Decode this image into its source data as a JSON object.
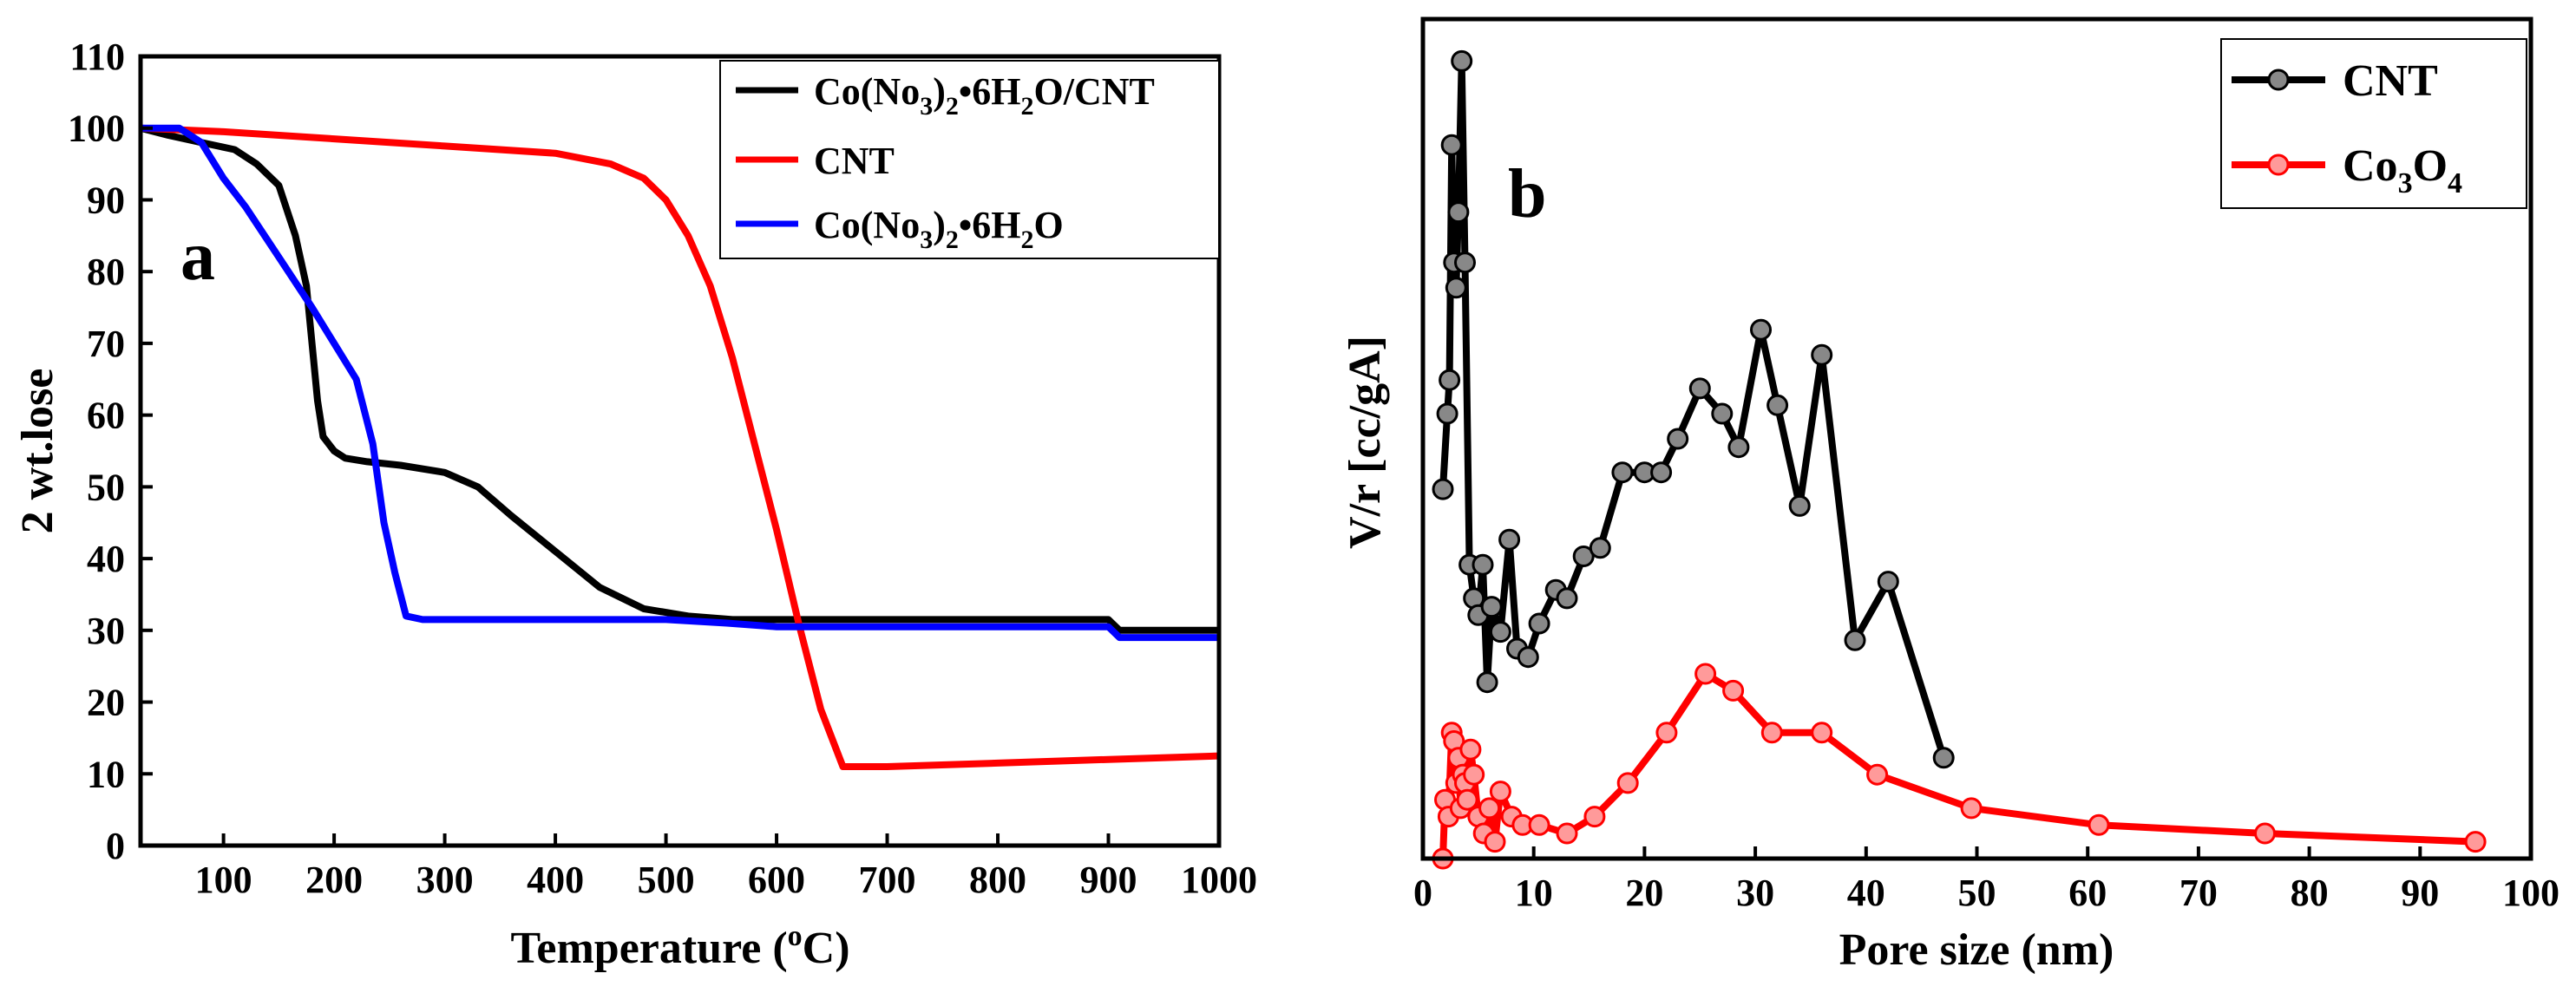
{
  "chart_data": [
    {
      "type": "line",
      "panel_label": "a",
      "xlabel_text": "Temperature (",
      "xlabel_sup": "o",
      "xlabel_unit": "C)",
      "ylabel": "2 wt.lose",
      "xlim": [
        25,
        1000
      ],
      "ylim": [
        0,
        110
      ],
      "xticks": [
        100,
        200,
        300,
        400,
        500,
        600,
        700,
        800,
        900,
        1000
      ],
      "yticks": [
        0,
        10,
        20,
        30,
        40,
        50,
        60,
        70,
        80,
        90,
        100,
        110
      ],
      "legend": [
        {
          "text": "Co(No",
          "sub1": "3",
          "mid": ")",
          "sub2": "2",
          "tail": "•6H",
          "sub3": "2",
          "end": "O/CNT"
        },
        {
          "text": "CNT"
        },
        {
          "text": "Co(No",
          "sub1": "3",
          "mid": ")",
          "sub2": "2",
          "tail": "•6H",
          "sub3": "2",
          "end": "O"
        }
      ],
      "series": [
        {
          "name": "Co(No3)2•6H2O/CNT",
          "color": "#000000",
          "x": [
            25,
            50,
            80,
            110,
            130,
            150,
            165,
            175,
            180,
            185,
            190,
            200,
            210,
            230,
            260,
            300,
            330,
            360,
            400,
            440,
            480,
            520,
            560,
            600,
            700,
            800,
            900,
            910,
            1000
          ],
          "y": [
            100,
            99,
            98,
            97,
            95,
            92,
            85,
            78,
            70,
            62,
            57,
            55,
            54,
            53.5,
            53,
            52,
            50,
            46,
            41,
            36,
            33,
            32,
            31.5,
            31.5,
            31.5,
            31.5,
            31.5,
            30,
            30
          ]
        },
        {
          "name": "CNT",
          "color": "#ff0000",
          "x": [
            25,
            100,
            200,
            300,
            400,
            450,
            480,
            500,
            520,
            540,
            560,
            580,
            600,
            620,
            640,
            660,
            700,
            800,
            900,
            1000
          ],
          "y": [
            100,
            99.5,
            98.5,
            97.5,
            96.5,
            95,
            93,
            90,
            85,
            78,
            68,
            56,
            44,
            31,
            19,
            11,
            11,
            11.5,
            12,
            12.5
          ]
        },
        {
          "name": "Co(No3)2•6H2O",
          "color": "#0000ff",
          "x": [
            25,
            60,
            80,
            100,
            120,
            150,
            180,
            200,
            220,
            235,
            245,
            255,
            265,
            280,
            300,
            400,
            500,
            555,
            600,
            700,
            800,
            900,
            910,
            1000
          ],
          "y": [
            100,
            100,
            98,
            93,
            89,
            82,
            75,
            70,
            65,
            56,
            45,
            38,
            32,
            31.5,
            31.5,
            31.5,
            31.5,
            31,
            30.5,
            30.5,
            30.5,
            30.5,
            29,
            29
          ]
        }
      ]
    },
    {
      "type": "line",
      "panel_label": "b",
      "xlabel": "Pore size (nm)",
      "ylabel": "V/r [cc/gA]",
      "xlim": [
        0,
        100
      ],
      "ylim": [
        0,
        1
      ],
      "xticks": [
        0,
        10,
        20,
        30,
        40,
        50,
        60,
        70,
        80,
        90,
        100
      ],
      "legend": [
        {
          "text": "CNT"
        },
        {
          "text": "Co",
          "sub1": "3",
          "mid": "O",
          "sub2": "4"
        }
      ],
      "series": [
        {
          "name": "CNT",
          "color": "#000000",
          "x": [
            1.8,
            2.2,
            2.4,
            2.6,
            2.8,
            3.0,
            3.2,
            3.5,
            3.8,
            4.2,
            4.6,
            5.0,
            5.4,
            5.8,
            6.2,
            7.0,
            7.8,
            8.5,
            9.5,
            10.5,
            12.0,
            13.0,
            14.5,
            16.0,
            18.0,
            20.0,
            21.5,
            23.0,
            25.0,
            27.0,
            28.5,
            30.5,
            32.0,
            34.0,
            36.0,
            39.0,
            42.0,
            47.0
          ],
          "y": [
            0.44,
            0.53,
            0.57,
            0.85,
            0.71,
            0.68,
            0.77,
            0.95,
            0.71,
            0.35,
            0.31,
            0.29,
            0.35,
            0.21,
            0.3,
            0.27,
            0.38,
            0.25,
            0.24,
            0.28,
            0.32,
            0.31,
            0.36,
            0.37,
            0.46,
            0.46,
            0.46,
            0.5,
            0.56,
            0.53,
            0.49,
            0.63,
            0.54,
            0.42,
            0.6,
            0.26,
            0.33,
            0.12
          ]
        },
        {
          "name": "Co3O4",
          "color": "#ff0000",
          "x": [
            1.8,
            2.0,
            2.3,
            2.6,
            2.8,
            3.0,
            3.2,
            3.4,
            3.6,
            3.8,
            4.0,
            4.3,
            4.6,
            5.0,
            5.5,
            6.0,
            6.5,
            7.0,
            8.0,
            9.0,
            10.5,
            13.0,
            15.5,
            18.5,
            22.0,
            25.5,
            28.0,
            31.5,
            36.0,
            41.0,
            49.5,
            61.0,
            76.0,
            95.0
          ],
          "y": [
            0.0,
            0.07,
            0.05,
            0.15,
            0.14,
            0.09,
            0.12,
            0.06,
            0.1,
            0.09,
            0.07,
            0.13,
            0.1,
            0.05,
            0.03,
            0.06,
            0.02,
            0.08,
            0.05,
            0.04,
            0.04,
            0.03,
            0.05,
            0.09,
            0.15,
            0.22,
            0.2,
            0.15,
            0.15,
            0.1,
            0.06,
            0.04,
            0.03,
            0.02
          ]
        }
      ]
    }
  ]
}
